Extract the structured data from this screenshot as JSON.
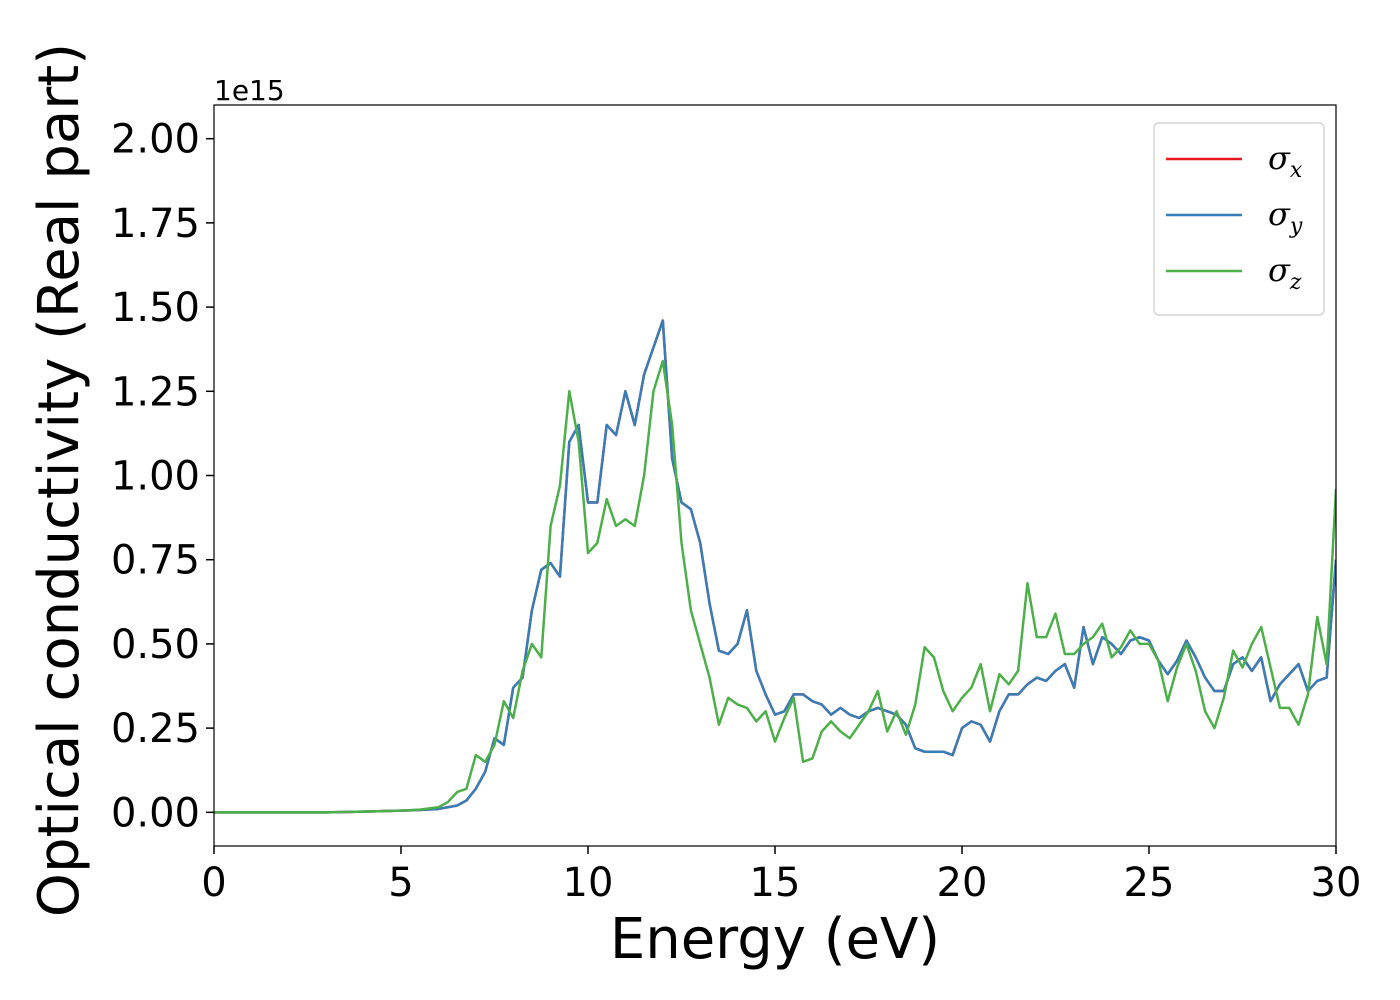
{
  "chart_data": {
    "type": "line",
    "x_label": "Energy (eV)",
    "y_label": "Optical conductivity (Real part)",
    "y_offset_label": "1e15",
    "xlim": [
      0,
      30
    ],
    "ylim": [
      -0.1,
      2.1
    ],
    "xticks": [
      0,
      5,
      10,
      15,
      20,
      25,
      30
    ],
    "yticks": [
      {
        "value": 0,
        "label": "0.00"
      },
      {
        "value": 0.25,
        "label": "0.25"
      },
      {
        "value": 0.5,
        "label": "0.50"
      },
      {
        "value": 0.75,
        "label": "0.75"
      },
      {
        "value": 1,
        "label": "1.00"
      },
      {
        "value": 1.25,
        "label": "1.25"
      },
      {
        "value": 1.5,
        "label": "1.50"
      },
      {
        "value": 1.75,
        "label": "1.75"
      },
      {
        "value": 2,
        "label": "2.00"
      }
    ],
    "grid": false,
    "legend": "upper right",
    "x": [
      0,
      1,
      2,
      3,
      4,
      5,
      5.5,
      6,
      6.25,
      6.5,
      6.75,
      7,
      7.25,
      7.5,
      7.75,
      8,
      8.25,
      8.5,
      8.75,
      9,
      9.25,
      9.5,
      9.75,
      10,
      10.25,
      10.5,
      10.75,
      11,
      11.25,
      11.5,
      11.75,
      12,
      12.25,
      12.5,
      12.75,
      13,
      13.25,
      13.5,
      13.75,
      14,
      14.25,
      14.5,
      14.75,
      15,
      15.25,
      15.5,
      15.75,
      16,
      16.25,
      16.5,
      16.75,
      17,
      17.25,
      17.5,
      17.75,
      18,
      18.25,
      18.5,
      18.75,
      19,
      19.25,
      19.5,
      19.75,
      20,
      20.25,
      20.5,
      20.75,
      21,
      21.25,
      21.5,
      21.75,
      22,
      22.25,
      22.5,
      22.75,
      23,
      23.25,
      23.5,
      23.75,
      24,
      24.25,
      24.5,
      24.75,
      25,
      25.25,
      25.5,
      25.75,
      26,
      26.25,
      26.5,
      26.75,
      27,
      27.25,
      27.5,
      27.75,
      28,
      28.25,
      28.5,
      28.75,
      29,
      29.25,
      29.5,
      29.75,
      30
    ],
    "series": [
      {
        "name": "σx",
        "color": "#e41a1c",
        "values": [
          0,
          0,
          0,
          0,
          0.002,
          0.005,
          0.007,
          0.01,
          0.015,
          0.02,
          0.035,
          0.07,
          0.12,
          0.22,
          0.2,
          0.37,
          0.4,
          0.6,
          0.72,
          0.74,
          0.7,
          1.1,
          1.15,
          0.92,
          0.92,
          1.15,
          1.12,
          1.25,
          1.15,
          1.3,
          1.38,
          1.46,
          1.05,
          0.92,
          0.9,
          0.8,
          0.62,
          0.48,
          0.47,
          0.5,
          0.6,
          0.42,
          0.35,
          0.29,
          0.3,
          0.35,
          0.35,
          0.33,
          0.32,
          0.29,
          0.31,
          0.29,
          0.28,
          0.3,
          0.31,
          0.3,
          0.29,
          0.26,
          0.19,
          0.18,
          0.18,
          0.18,
          0.17,
          0.25,
          0.27,
          0.26,
          0.21,
          0.3,
          0.35,
          0.35,
          0.38,
          0.4,
          0.39,
          0.42,
          0.44,
          0.37,
          0.55,
          0.44,
          0.52,
          0.5,
          0.47,
          0.51,
          0.52,
          0.51,
          0.45,
          0.41,
          0.45,
          0.51,
          0.46,
          0.4,
          0.36,
          0.36,
          0.44,
          0.46,
          0.42,
          0.46,
          0.33,
          0.38,
          0.41,
          0.44,
          0.36,
          0.39,
          0.4,
          0.75
        ]
      },
      {
        "name": "σy",
        "color": "#377eb8",
        "values": [
          0,
          0,
          0,
          0,
          0.002,
          0.005,
          0.007,
          0.01,
          0.015,
          0.02,
          0.035,
          0.07,
          0.12,
          0.22,
          0.2,
          0.37,
          0.4,
          0.6,
          0.72,
          0.74,
          0.7,
          1.1,
          1.15,
          0.92,
          0.92,
          1.15,
          1.12,
          1.25,
          1.15,
          1.3,
          1.38,
          1.46,
          1.05,
          0.92,
          0.9,
          0.8,
          0.62,
          0.48,
          0.47,
          0.5,
          0.6,
          0.42,
          0.35,
          0.29,
          0.3,
          0.35,
          0.35,
          0.33,
          0.32,
          0.29,
          0.31,
          0.29,
          0.28,
          0.3,
          0.31,
          0.3,
          0.29,
          0.26,
          0.19,
          0.18,
          0.18,
          0.18,
          0.17,
          0.25,
          0.27,
          0.26,
          0.21,
          0.3,
          0.35,
          0.35,
          0.38,
          0.4,
          0.39,
          0.42,
          0.44,
          0.37,
          0.55,
          0.44,
          0.52,
          0.5,
          0.47,
          0.51,
          0.52,
          0.51,
          0.45,
          0.41,
          0.45,
          0.51,
          0.46,
          0.4,
          0.36,
          0.36,
          0.44,
          0.46,
          0.42,
          0.46,
          0.33,
          0.38,
          0.41,
          0.44,
          0.36,
          0.39,
          0.4,
          0.75
        ]
      },
      {
        "name": "σz",
        "color": "#4daf4a",
        "values": [
          0,
          0,
          0,
          0,
          0.002,
          0.005,
          0.008,
          0.015,
          0.03,
          0.06,
          0.07,
          0.17,
          0.15,
          0.2,
          0.33,
          0.28,
          0.42,
          0.5,
          0.46,
          0.85,
          0.97,
          1.25,
          1.1,
          0.77,
          0.8,
          0.93,
          0.85,
          0.87,
          0.85,
          1.0,
          1.25,
          1.34,
          1.15,
          0.8,
          0.6,
          0.5,
          0.4,
          0.26,
          0.34,
          0.32,
          0.31,
          0.27,
          0.3,
          0.21,
          0.28,
          0.34,
          0.15,
          0.16,
          0.24,
          0.27,
          0.24,
          0.22,
          0.26,
          0.3,
          0.36,
          0.24,
          0.3,
          0.23,
          0.32,
          0.49,
          0.46,
          0.36,
          0.3,
          0.34,
          0.37,
          0.44,
          0.3,
          0.41,
          0.38,
          0.42,
          0.68,
          0.52,
          0.52,
          0.59,
          0.47,
          0.47,
          0.5,
          0.52,
          0.56,
          0.46,
          0.49,
          0.54,
          0.5,
          0.5,
          0.45,
          0.33,
          0.43,
          0.5,
          0.42,
          0.3,
          0.25,
          0.34,
          0.48,
          0.43,
          0.5,
          0.55,
          0.43,
          0.31,
          0.31,
          0.26,
          0.35,
          0.58,
          0.44,
          0.96
        ]
      }
    ]
  }
}
